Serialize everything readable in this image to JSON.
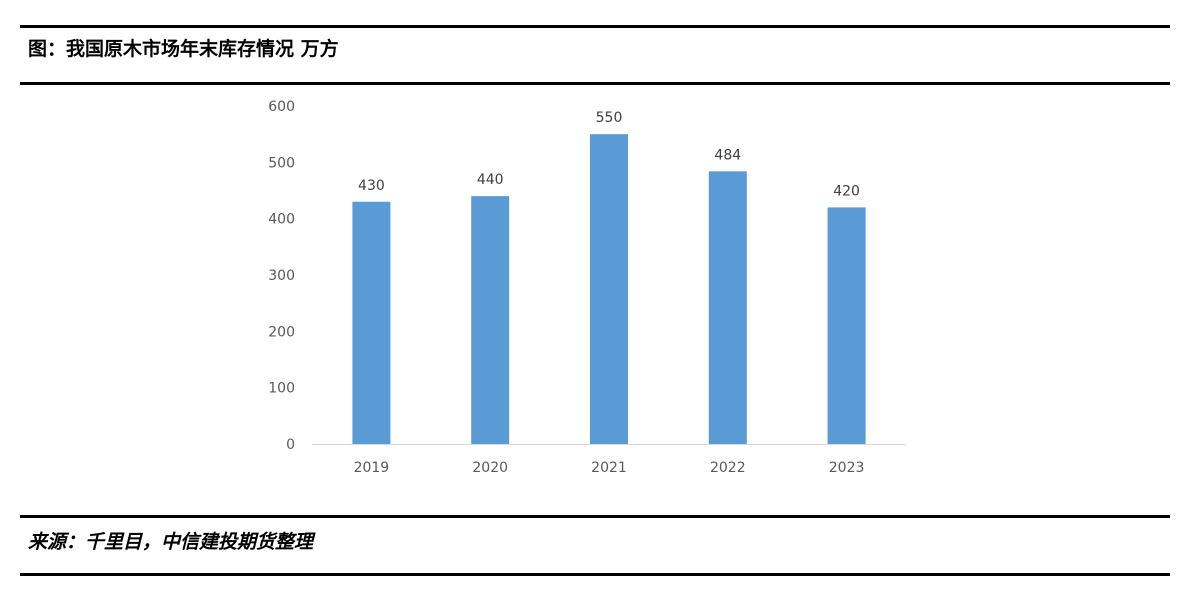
{
  "header": {
    "title": "图：我国原木市场年末库存情况 万方"
  },
  "footer": {
    "source": "来源：千里目，中信建投期货整理"
  },
  "chart_data": {
    "type": "bar",
    "categories": [
      "2019",
      "2020",
      "2021",
      "2022",
      "2023"
    ],
    "values": [
      430,
      440,
      550,
      484,
      420
    ],
    "ylim": [
      0,
      600
    ],
    "yticks": [
      0,
      100,
      200,
      300,
      400,
      500,
      600
    ],
    "data_labels": true,
    "grid": false,
    "bar_color": "#5B9BD5",
    "axis_color": "#D9D9D9"
  }
}
